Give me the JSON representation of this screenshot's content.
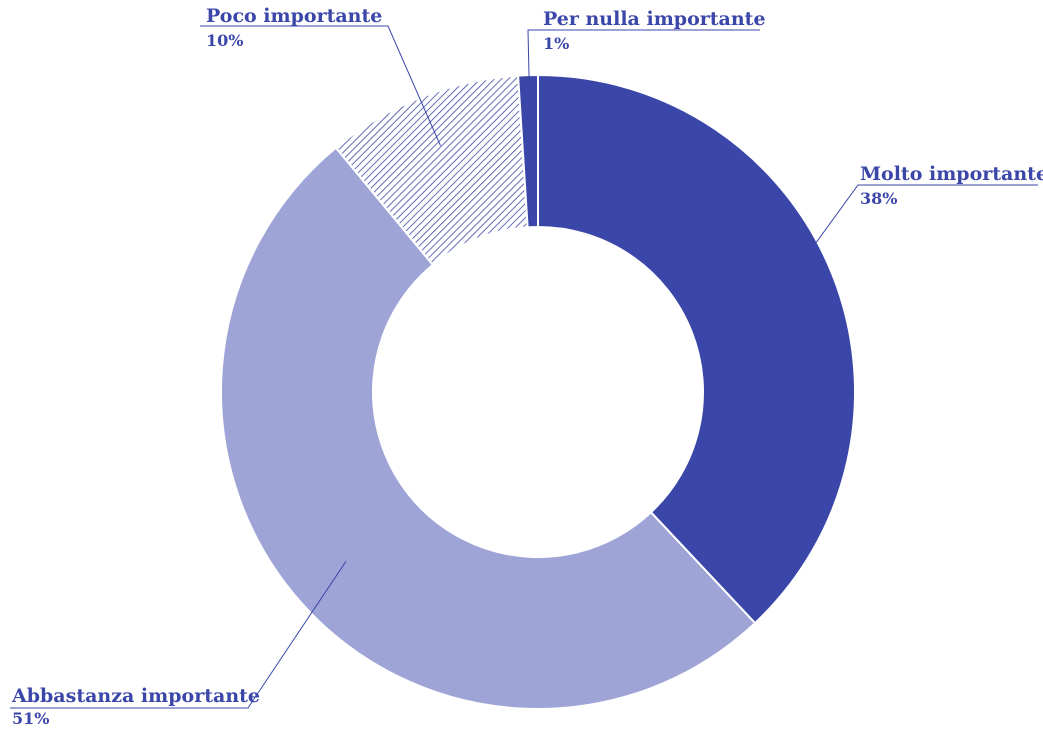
{
  "chart_data": {
    "type": "pie",
    "variant": "donut",
    "title": "",
    "start_angle_deg": 0,
    "direction": "clockwise",
    "slices": [
      {
        "name": "Molto importante",
        "value": 38,
        "value_label": "38%",
        "color": "#3b46a9",
        "pattern": "solid"
      },
      {
        "name": "Abbastanza importante",
        "value": 51,
        "value_label": "51%",
        "color": "#9ea4d6",
        "pattern": "solid"
      },
      {
        "name": "Poco importante",
        "value": 10,
        "value_label": "10%",
        "color": "#3b46a9",
        "pattern": "hatched"
      },
      {
        "name": "Per nulla importante",
        "value": 1,
        "value_label": "1%",
        "color": "#3b46a9",
        "pattern": "solid"
      }
    ],
    "label_color": "#3b46a9",
    "legend": "none"
  }
}
